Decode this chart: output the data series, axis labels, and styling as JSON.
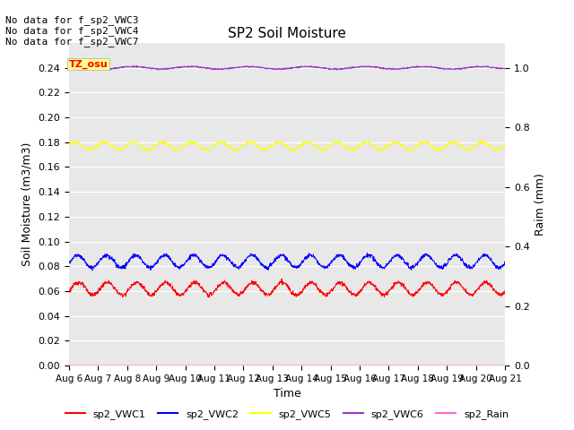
{
  "title": "SP2 Soil Moisture",
  "xlabel": "Time",
  "ylabel_left": "Soil Moisture (m3/m3)",
  "ylabel_right": "Raim (mm)",
  "no_data_text": [
    "No data for f_sp2_VWC3",
    "No data for f_sp2_VWC4",
    "No data for f_sp2_VWC7"
  ],
  "tz_label": "TZ_osu",
  "n_points": 1500,
  "ylim_left": [
    0.0,
    0.26
  ],
  "ylim_right": [
    0.0,
    1.0833
  ],
  "yticks_left": [
    0.0,
    0.02,
    0.04,
    0.06,
    0.08,
    0.1,
    0.12,
    0.14,
    0.16,
    0.18,
    0.2,
    0.22,
    0.24
  ],
  "yticks_right": [
    0.0,
    0.2,
    0.4,
    0.6,
    0.8,
    1.0
  ],
  "xtick_labels": [
    "Aug 6",
    "Aug 7",
    "Aug 8",
    "Aug 9",
    "Aug 10",
    "Aug 11",
    "Aug 12",
    "Aug 13",
    "Aug 14",
    "Aug 15",
    "Aug 16",
    "Aug 17",
    "Aug 18",
    "Aug 19",
    "Aug 20",
    "Aug 21"
  ],
  "legend_entries": [
    "sp2_VWC1",
    "sp2_VWC2",
    "sp2_VWC5",
    "sp2_VWC6",
    "sp2_Rain"
  ],
  "legend_colors": [
    "#ff0000",
    "#0000ff",
    "#ffff00",
    "#9933cc",
    "#ff66cc"
  ],
  "line_colors": {
    "VWC1": "#ff0000",
    "VWC2": "#0000ff",
    "VWC5": "#ffff00",
    "VWC6": "#9933cc",
    "Rain": "#ff66cc"
  },
  "VWC1_base": 0.062,
  "VWC1_amp": 0.005,
  "VWC2_base": 0.084,
  "VWC2_amp": 0.005,
  "VWC5_base": 0.177,
  "VWC5_amp": 0.003,
  "VWC6_base": 0.24,
  "VWC6_amp": 0.001,
  "bg_color": "#e8e8e8",
  "grid_color": "#ffffff",
  "figsize": [
    6.4,
    4.8
  ],
  "dpi": 100
}
